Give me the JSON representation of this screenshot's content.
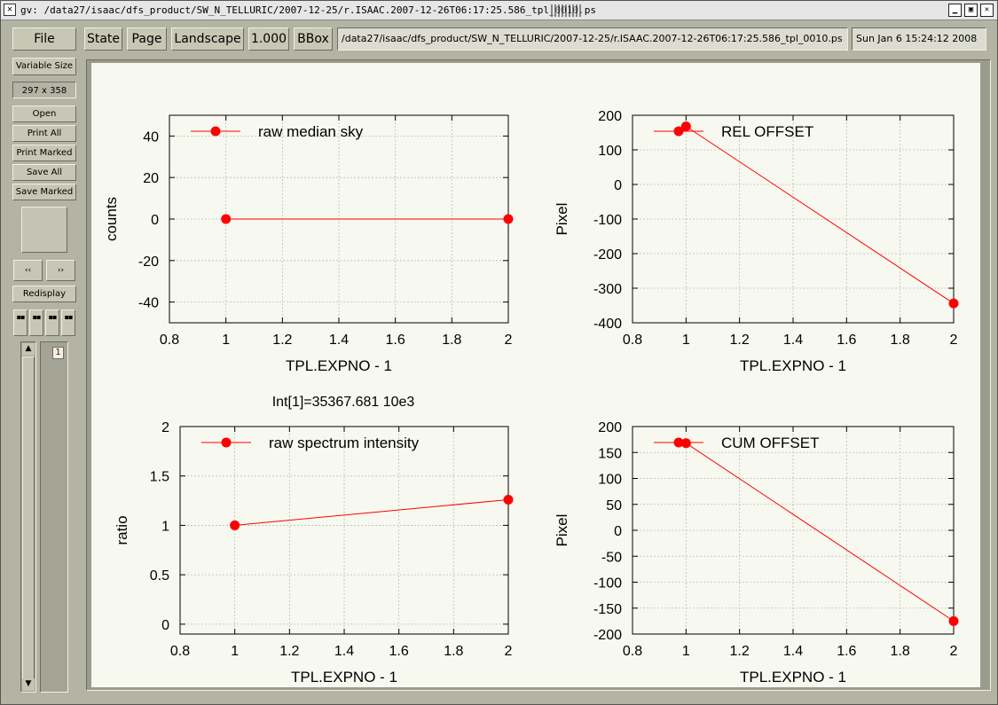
{
  "window": {
    "title": "gv: /data27/isaac/dfs_product/SW_N_TELLURIC/2007-12-25/r.ISAAC.2007-12-26T06:17:25.586_tpl_0010.ps",
    "close_glyph": "✕",
    "iconify_glyph": "▁",
    "maximize_glyph": "▣",
    "kill_glyph": "✕"
  },
  "toolbar": {
    "file": "File",
    "state": "State",
    "page": "Page",
    "orientation": "Landscape",
    "scale": "1.000",
    "bbox": "BBox",
    "path": "/data27/isaac/dfs_product/SW_N_TELLURIC/2007-12-25/r.ISAAC.2007-12-26T06:17:25.586_tpl_0010.ps",
    "date": "Sun Jan  6 15:24:12 2008"
  },
  "sidebar": {
    "size_mode": "Variable Size",
    "size": "297 x 358",
    "open": "Open",
    "print_all": "Print All",
    "print_marked": "Print Marked",
    "save_all": "Save All",
    "save_marked": "Save Marked",
    "prev": "‹‹",
    "next": "››",
    "redisplay": "Redisplay",
    "mark_glyph": "▪▪",
    "scroll_up": "▲",
    "scroll_down": "▼",
    "page_number": "1"
  },
  "colors": {
    "series": "#ff0000",
    "grid": "#bdbdbd",
    "paper": "#f7f8ef"
  },
  "figure_note": "Int[1]=35367.681 10e3",
  "chart_data": [
    {
      "type": "line",
      "legend": "raw median sky",
      "xlabel": "TPL.EXPNO - 1",
      "ylabel": "counts",
      "xlim": [
        0.8,
        2
      ],
      "ylim": [
        -50,
        50
      ],
      "xticks": [
        0.8,
        1,
        1.2,
        1.4,
        1.6,
        1.8,
        2
      ],
      "xtick_labels": [
        "0.8",
        "1",
        "1.2",
        "1.4",
        "1.6",
        "1.8",
        "2"
      ],
      "yticks": [
        -40,
        -20,
        0,
        20,
        40
      ],
      "ytick_labels": [
        "-40",
        "-20",
        "0",
        "20",
        "40"
      ],
      "x": [
        1,
        2
      ],
      "y": [
        0,
        0
      ],
      "grid": true,
      "legend_position": "top-left"
    },
    {
      "type": "line",
      "legend": "REL OFFSET",
      "xlabel": "TPL.EXPNO - 1",
      "ylabel": "Pixel",
      "xlim": [
        0.8,
        2
      ],
      "ylim": [
        -400,
        200
      ],
      "xticks": [
        0.8,
        1,
        1.2,
        1.4,
        1.6,
        1.8,
        2
      ],
      "xtick_labels": [
        "0.8",
        "1",
        "1.2",
        "1.4",
        "1.6",
        "1.8",
        "2"
      ],
      "yticks": [
        -400,
        -300,
        -200,
        -100,
        0,
        100,
        200
      ],
      "ytick_labels": [
        "-400",
        "-300",
        "-200",
        "-100",
        "0",
        "100",
        "200"
      ],
      "x": [
        1,
        2
      ],
      "y": [
        168,
        -344
      ],
      "grid": true,
      "legend_position": "top-left"
    },
    {
      "type": "line",
      "legend": "raw spectrum intensity",
      "xlabel": "TPL.EXPNO - 1",
      "ylabel": "ratio",
      "xlim": [
        0.8,
        2
      ],
      "ylim": [
        -0.1,
        2
      ],
      "xticks": [
        0.8,
        1,
        1.2,
        1.4,
        1.6,
        1.8,
        2
      ],
      "xtick_labels": [
        "0.8",
        "1",
        "1.2",
        "1.4",
        "1.6",
        "1.8",
        "2"
      ],
      "yticks": [
        0,
        0.5,
        1,
        1.5,
        2
      ],
      "ytick_labels": [
        "0",
        "0.5",
        "1",
        "1.5",
        "2"
      ],
      "x": [
        1,
        2
      ],
      "y": [
        1,
        1.26
      ],
      "grid": true,
      "legend_position": "top-left"
    },
    {
      "type": "line",
      "legend": "CUM OFFSET",
      "xlabel": "TPL.EXPNO - 1",
      "ylabel": "Pixel",
      "xlim": [
        0.8,
        2
      ],
      "ylim": [
        -200,
        200
      ],
      "xticks": [
        0.8,
        1,
        1.2,
        1.4,
        1.6,
        1.8,
        2
      ],
      "xtick_labels": [
        "0.8",
        "1",
        "1.2",
        "1.4",
        "1.6",
        "1.8",
        "2"
      ],
      "yticks": [
        -200,
        -150,
        -100,
        -50,
        0,
        50,
        100,
        150,
        200
      ],
      "ytick_labels": [
        "-200",
        "-150",
        "-100",
        "-50",
        "0",
        "50",
        "100",
        "150",
        "200"
      ],
      "x": [
        1,
        2
      ],
      "y": [
        168,
        -175
      ],
      "grid": true,
      "legend_position": "top-left"
    }
  ]
}
